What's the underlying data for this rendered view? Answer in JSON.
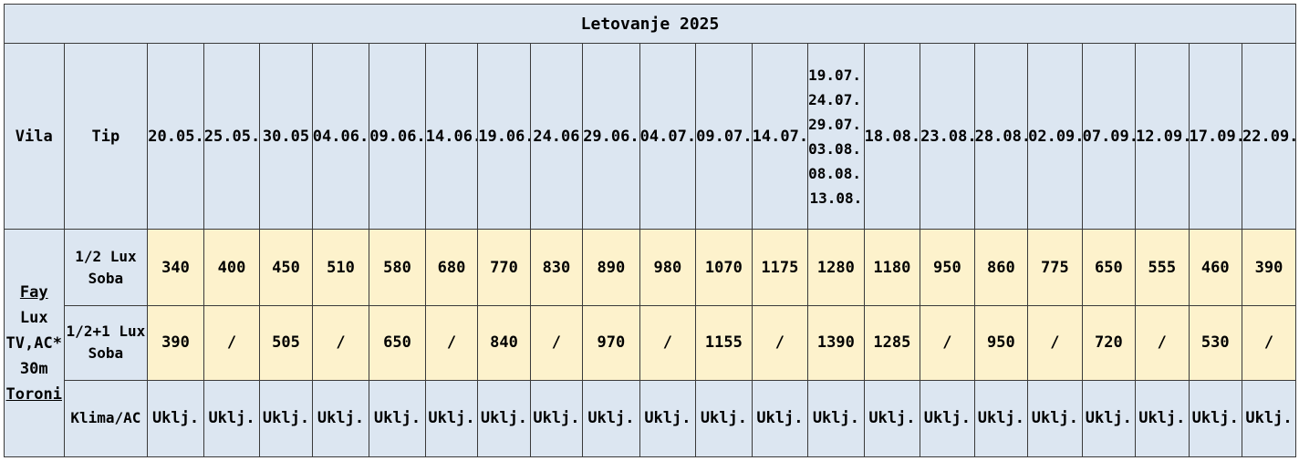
{
  "title": "Letovanje 2025",
  "headers": {
    "vila": "Vila",
    "tip": "Tip",
    "dates": [
      "20.05.",
      "25.05.",
      "30.05",
      "04.06.",
      "09.06.",
      "14.06.",
      "19.06.",
      "24.06",
      "29.06.",
      "04.07.",
      "09.07.",
      "14.07.",
      "19.07.;\n24.07.;\n29.07.;\n03.08.;\n08.08.;\n13.08.",
      "18.08.",
      "23.08.",
      "28.08.",
      "02.09.",
      "07.09.",
      "12.09.",
      "17.09.",
      "22.09."
    ]
  },
  "vila": {
    "line1": "Fay",
    "line2": "Lux",
    "line3": "TV,AC*",
    "line4": "30m",
    "line5": "Toroni"
  },
  "rows": [
    {
      "tip": "1/2 Lux\nSoba",
      "values": [
        "340",
        "400",
        "450",
        "510",
        "580",
        "680",
        "770",
        "830",
        "890",
        "980",
        "1070",
        "1175",
        "1280",
        "1180",
        "950",
        "860",
        "775",
        "650",
        "555",
        "460",
        "390"
      ]
    },
    {
      "tip": "1/2+1 Lux\nSoba",
      "values": [
        "390",
        "/",
        "505",
        "/",
        "650",
        "/",
        "840",
        "/",
        "970",
        "/",
        "1155",
        "/",
        "1390",
        "1285",
        "/",
        "950",
        "/",
        "720",
        "/",
        "530",
        "/"
      ]
    },
    {
      "tip": "Klima/AC",
      "values": [
        "Uklj.",
        "Uklj.",
        "Uklj.",
        "Uklj.",
        "Uklj.",
        "Uklj.",
        "Uklj.",
        "Uklj.",
        "Uklj.",
        "Uklj.",
        "Uklj.",
        "Uklj.",
        "Uklj.",
        "Uklj.",
        "Uklj.",
        "Uklj.",
        "Uklj.",
        "Uklj.",
        "Uklj.",
        "Uklj.",
        "Uklj."
      ]
    }
  ],
  "colors": {
    "header_bg": "#dce6f1",
    "price_bg": "#fdf2cc",
    "border": "#3a3a3a"
  }
}
